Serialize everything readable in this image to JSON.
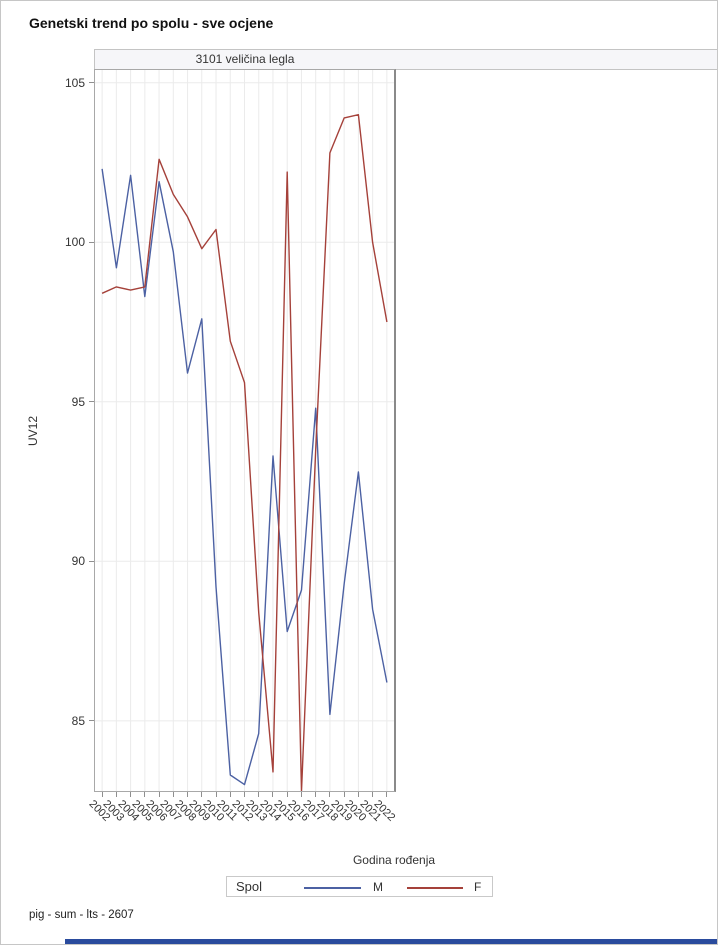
{
  "page": {
    "title": "Genetski trend po spolu - sve ocjene",
    "footer": "pig - sum - lts - 2607",
    "bottom_bar_color": "#2a4b9d"
  },
  "panel": {
    "header": "3101 veličina legla",
    "header2": ""
  },
  "chart_data": {
    "type": "line",
    "title": "3101 veličina legla",
    "xlabel": "Godina rođenja",
    "ylabel": "UV12",
    "categories": [
      "2002",
      "2003",
      "2004",
      "2005",
      "2006",
      "2007",
      "2008",
      "2009",
      "2010",
      "2011",
      "2012",
      "2013",
      "2014",
      "2015",
      "2016",
      "2017",
      "2018",
      "2019",
      "2020",
      "2021",
      "2022"
    ],
    "series": [
      {
        "name": "M",
        "color": "#4c61a3",
        "values": [
          102.3,
          99.2,
          102.1,
          98.3,
          101.9,
          99.7,
          95.9,
          97.6,
          89.2,
          83.3,
          83.0,
          84.6,
          93.3,
          87.8,
          89.1,
          94.8,
          85.2,
          89.3,
          92.8,
          88.5,
          86.2
        ]
      },
      {
        "name": "F",
        "color": "#a5413a",
        "values": [
          98.4,
          98.6,
          98.5,
          98.6,
          102.6,
          101.5,
          100.8,
          99.8,
          100.4,
          96.9,
          95.6,
          88.4,
          83.4,
          102.2,
          82.8,
          93.5,
          102.8,
          103.9,
          104.0,
          100.0,
          97.5
        ]
      }
    ],
    "yticks": [
      85,
      90,
      95,
      100,
      105
    ],
    "ylim": [
      82.8,
      105.4
    ],
    "grid": "both",
    "gridline_color": "#ebebeb",
    "legend_title": "Spol",
    "legend_position": "bottom"
  }
}
